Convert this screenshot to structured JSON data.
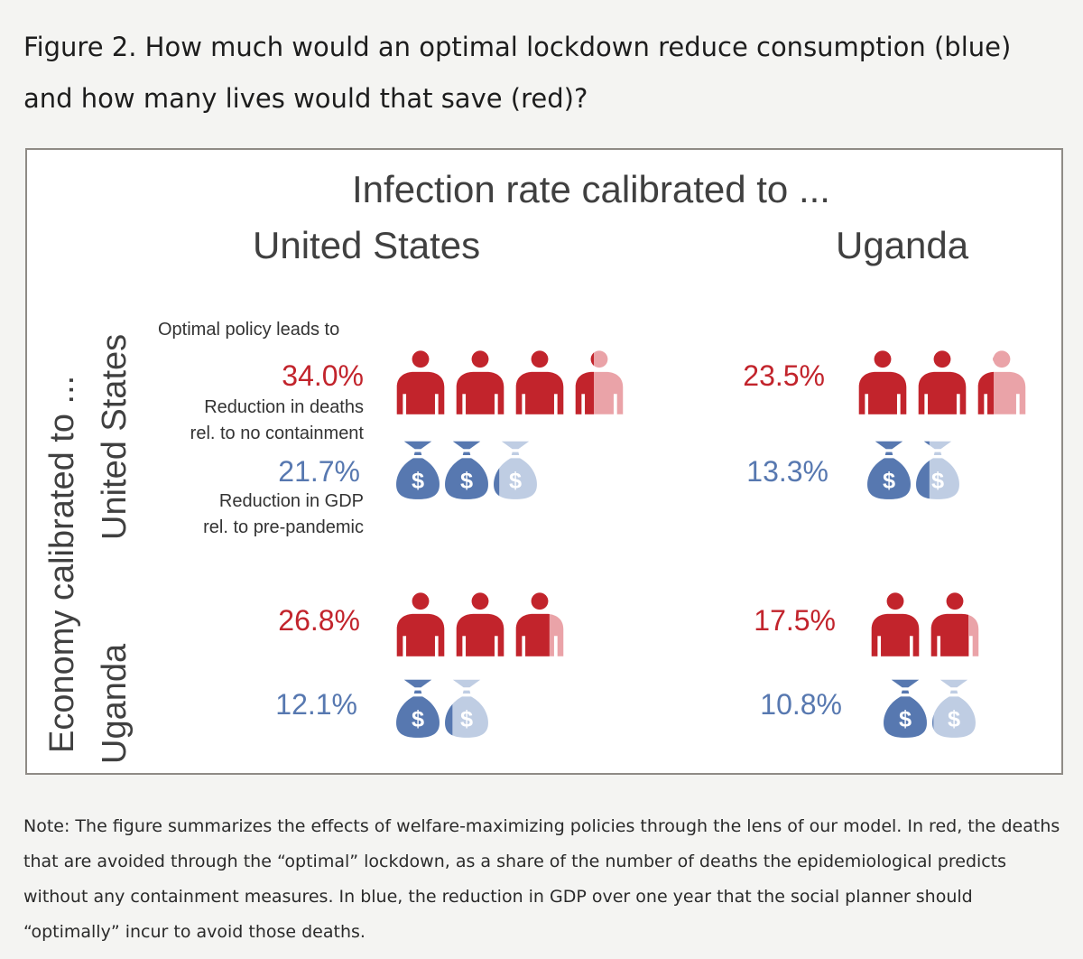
{
  "figure_title": "Figure 2. How much would an optimal lockdown reduce consumption (blue) and how many lives would that save (red)?",
  "note": "Note: The figure summarizes the effects of welfare-maximizing policies through the lens of our model. In red, the deaths that are avoided through the “optimal” lockdown, as a share of the number of deaths the epidemiological predicts without any containment measures. In blue, the reduction in GDP over one year that the social planner should “optimally” incur to avoid those deaths.",
  "colors": {
    "deaths": "#c2242c",
    "deaths_light": "#eaa3a8",
    "gdp": "#5778b0",
    "gdp_light": "#bfcde3"
  },
  "icons": {
    "deaths": "person-icon",
    "gdp": "money-bag-icon"
  },
  "chart_data": {
    "type": "table",
    "title": "Infection rate calibrated to ...",
    "row_axis_label": "Economy calibrated to ...",
    "columns": [
      "United States",
      "Uganda"
    ],
    "rows": [
      "United States",
      "Uganda"
    ],
    "legend": {
      "intro": "Optimal policy leads to",
      "deaths_line1": "Reduction in deaths",
      "deaths_line2": "rel. to no containment",
      "gdp_line1": "Reduction in GDP",
      "gdp_line2": "rel. to pre-pandemic"
    },
    "series": [
      {
        "name": "Reduction in deaths rel. to no containment",
        "unit_per_icon": 10,
        "values": [
          [
            34.0,
            23.5
          ],
          [
            26.8,
            17.5
          ]
        ],
        "labels": [
          [
            "34.0%",
            "23.5%"
          ],
          [
            "26.8%",
            "17.5%"
          ]
        ]
      },
      {
        "name": "Reduction in GDP rel. to pre-pandemic",
        "unit_per_icon": 10,
        "values": [
          [
            21.7,
            13.3
          ],
          [
            12.1,
            10.8
          ]
        ],
        "labels": [
          [
            "21.7%",
            "13.3%"
          ],
          [
            "12.1%",
            "10.8%"
          ]
        ]
      }
    ]
  }
}
